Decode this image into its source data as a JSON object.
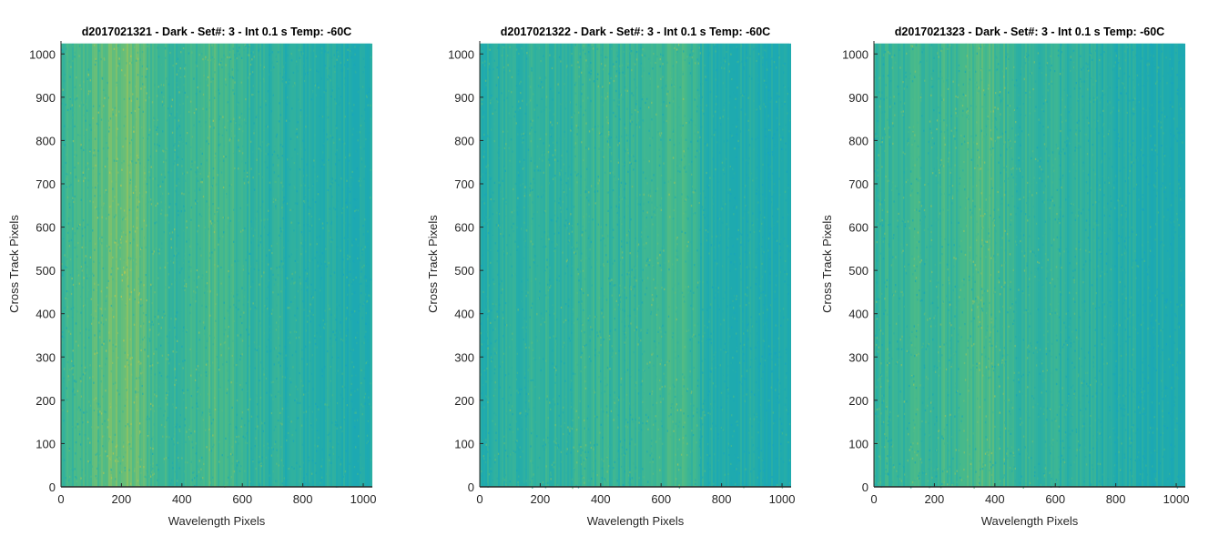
{
  "chart_data": [
    {
      "type": "heatmap",
      "title": "d2017021321 - Dark - Set#: 3 - Int 0.1 s Temp: -60C",
      "xlabel": "Wavelength Pixels",
      "ylabel": "Cross Track Pixels",
      "xlim": [
        0,
        1030
      ],
      "ylim": [
        0,
        1030
      ],
      "xticks": [
        0,
        200,
        400,
        600,
        800,
        1000
      ],
      "yticks": [
        0,
        100,
        200,
        300,
        400,
        500,
        600,
        700,
        800,
        900,
        1000
      ],
      "colormap": "parula",
      "column_profile": {
        "x": [
          0,
          100,
          200,
          260,
          320,
          400,
          500,
          550,
          600,
          700,
          800,
          900,
          1024
        ],
        "level": [
          0.5,
          0.62,
          0.72,
          0.66,
          0.55,
          0.52,
          0.6,
          0.56,
          0.5,
          0.45,
          0.42,
          0.4,
          0.36
        ]
      }
    },
    {
      "type": "heatmap",
      "title": "d2017021322 - Dark - Set#: 3 - Int 0.1 s Temp: -60C",
      "xlabel": "Wavelength Pixels",
      "ylabel": "Cross Track Pixels",
      "xlim": [
        0,
        1030
      ],
      "ylim": [
        0,
        1030
      ],
      "xticks": [
        0,
        200,
        400,
        600,
        800,
        1000
      ],
      "yticks": [
        0,
        100,
        200,
        300,
        400,
        500,
        600,
        700,
        800,
        900,
        1000
      ],
      "colormap": "parula",
      "column_profile": {
        "x": [
          0,
          100,
          200,
          300,
          400,
          500,
          600,
          650,
          700,
          750,
          800,
          900,
          1024
        ],
        "level": [
          0.44,
          0.46,
          0.48,
          0.5,
          0.52,
          0.5,
          0.54,
          0.6,
          0.52,
          0.4,
          0.38,
          0.36,
          0.34
        ]
      }
    },
    {
      "type": "heatmap",
      "title": "d2017021323 - Dark - Set#: 3 - Int 0.1 s Temp: -60C",
      "xlabel": "Wavelength Pixels",
      "ylabel": "Cross Track Pixels",
      "xlim": [
        0,
        1030
      ],
      "ylim": [
        0,
        1030
      ],
      "xticks": [
        0,
        200,
        400,
        600,
        800,
        1000
      ],
      "yticks": [
        0,
        100,
        200,
        300,
        400,
        500,
        600,
        700,
        800,
        900,
        1000
      ],
      "colormap": "parula",
      "column_profile": {
        "x": [
          0,
          100,
          200,
          300,
          370,
          450,
          500,
          600,
          700,
          800,
          900,
          1024
        ],
        "level": [
          0.5,
          0.52,
          0.54,
          0.56,
          0.62,
          0.52,
          0.5,
          0.48,
          0.44,
          0.4,
          0.36,
          0.32
        ]
      }
    }
  ]
}
